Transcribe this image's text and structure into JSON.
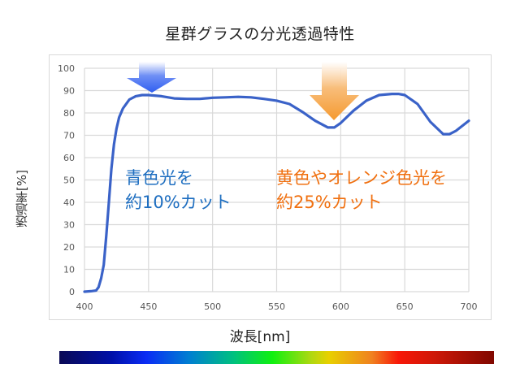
{
  "title": "星群グラスの分光透過特性",
  "axes": {
    "ylabel": "透過率[%]",
    "xlabel": "波長[nm]",
    "yticks": [
      "0",
      "10",
      "20",
      "30",
      "40",
      "50",
      "60",
      "70",
      "80",
      "90",
      "100"
    ],
    "xticks": [
      "400",
      "450",
      "500",
      "550",
      "600",
      "650",
      "700"
    ]
  },
  "annotations": {
    "blue": {
      "line1": "青色光を",
      "line2": "約10%カット",
      "color": "#1e6ec0"
    },
    "orange": {
      "line1": "黄色やオレンジ色光を",
      "line2": "約25%カット",
      "color": "#f07010"
    }
  },
  "colors": {
    "line": "#3a62c8",
    "grid": "#d9d9d9",
    "arrow_blue": "#2f5ef0",
    "arrow_orange": "#f59a30"
  },
  "chart_data": {
    "type": "line",
    "title": "星群グラスの分光透過特性",
    "xlabel": "波長[nm]",
    "ylabel": "透過率[%]",
    "xlim": [
      400,
      700
    ],
    "ylim": [
      0,
      100
    ],
    "grid": true,
    "series": [
      {
        "name": "透過率",
        "x": [
          400,
          405,
          409,
          411,
          413,
          415,
          417,
          419,
          421,
          423,
          425,
          427,
          430,
          435,
          440,
          445,
          450,
          460,
          470,
          480,
          490,
          500,
          510,
          520,
          530,
          540,
          550,
          560,
          570,
          580,
          590,
          595,
          600,
          610,
          620,
          630,
          640,
          645,
          650,
          660,
          670,
          680,
          685,
          690,
          700
        ],
        "values": [
          0,
          0.2,
          0.5,
          2,
          6,
          12,
          25,
          40,
          55,
          66,
          73,
          78,
          82,
          86,
          87.5,
          88,
          88,
          87.5,
          86.5,
          86.3,
          86.3,
          86.8,
          87,
          87.2,
          87,
          86.3,
          85.5,
          84,
          80.5,
          76.5,
          73.5,
          73.5,
          75.5,
          81,
          85.5,
          88,
          88.5,
          88.5,
          88,
          84,
          76,
          70.5,
          70.5,
          72,
          76.5
        ]
      }
    ],
    "annotations": [
      {
        "text": "青色光を約10%カット",
        "arrow_at_nm": 452,
        "color": "blue"
      },
      {
        "text": "黄色やオレンジ色光を約25%カット",
        "arrow_at_nm": 595,
        "color": "orange"
      }
    ]
  }
}
